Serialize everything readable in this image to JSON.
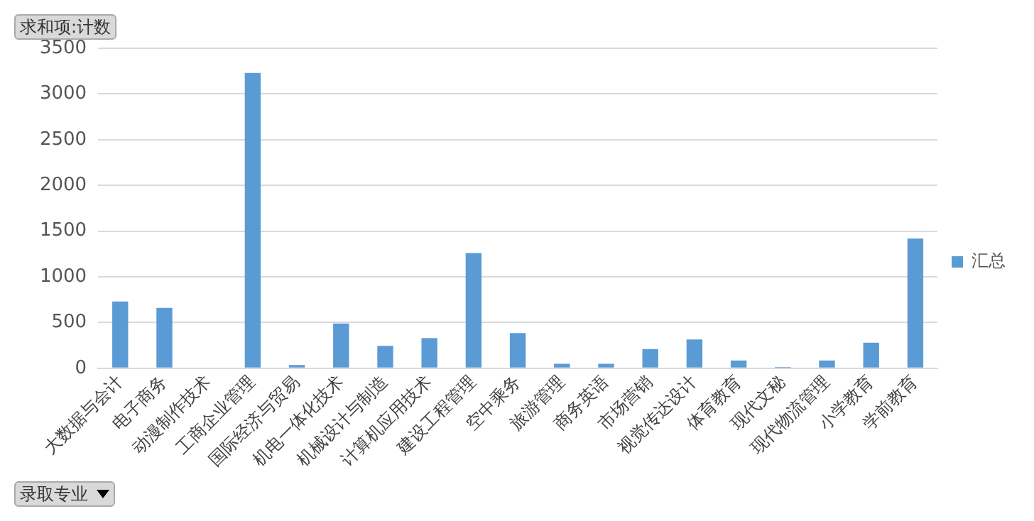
{
  "chart_data": {
    "type": "bar",
    "categories": [
      "大数据与会计",
      "电子商务",
      "动漫制作技术",
      "工商企业管理",
      "国际经济与贸易",
      "机电一体化技术",
      "机械设计与制造",
      "计算机应用技术",
      "建设工程管理",
      "空中乘务",
      "旅游管理",
      "商务英语",
      "市场营销",
      "视觉传达设计",
      "体育教育",
      "现代文秘",
      "现代物流管理",
      "小学教育",
      "学前教育"
    ],
    "series": [
      {
        "name": "汇总",
        "color": "#5b9bd5",
        "values": [
          730,
          660,
          0,
          3230,
          35,
          490,
          245,
          330,
          1260,
          385,
          50,
          50,
          210,
          315,
          85,
          15,
          85,
          280,
          1420
        ]
      }
    ],
    "ylim": [
      0,
      3500
    ],
    "yticks": [
      0,
      500,
      1000,
      1500,
      2000,
      2500,
      3000,
      3500
    ],
    "grid": "y",
    "legend": "right",
    "annotations": [
      "求和项:计数",
      "录取专业"
    ]
  }
}
